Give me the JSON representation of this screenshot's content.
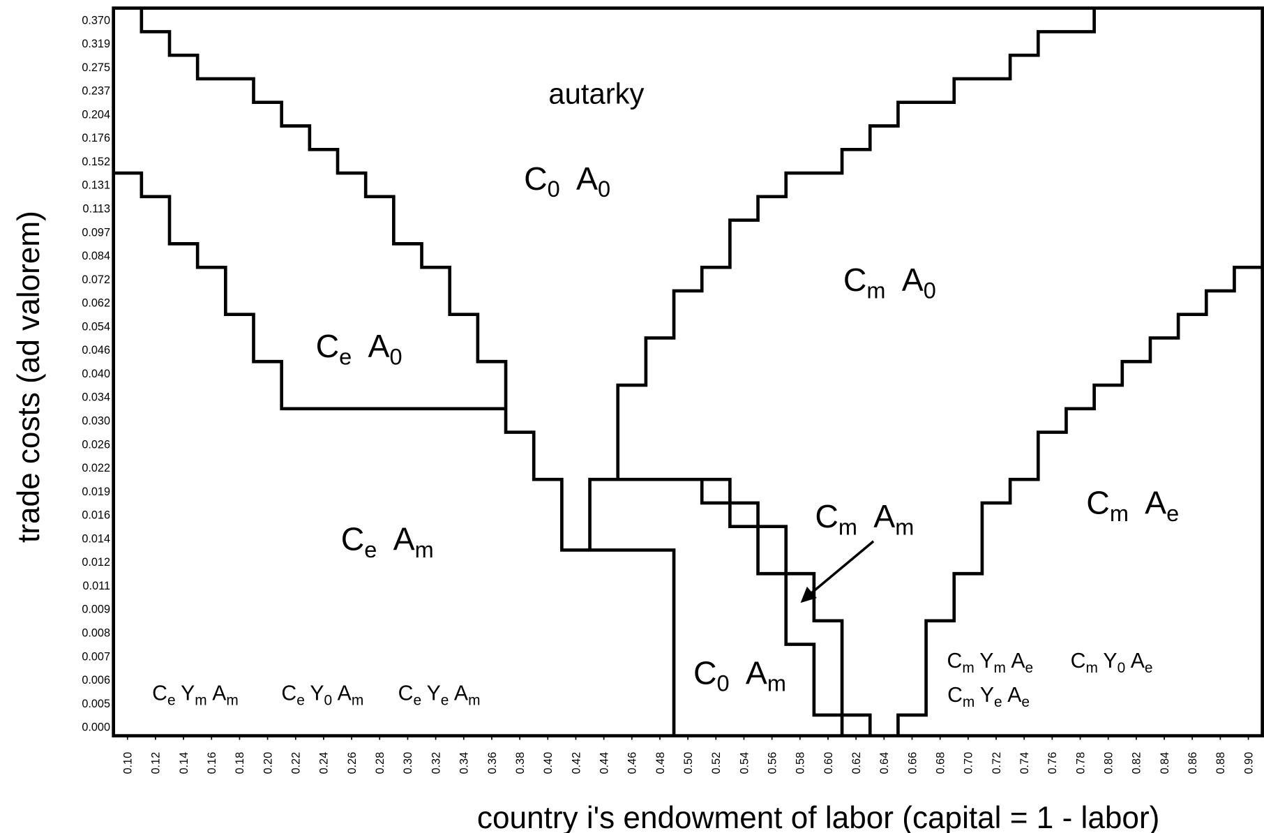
{
  "chart_data": {
    "type": "line",
    "x_label": "country i's endowment of labor  (capital  = 1 - labor)",
    "y_label": "trade costs (ad valorem)",
    "xlim": [
      0.09,
      0.91
    ],
    "xticks": [
      {
        "value": 0.1,
        "label": "0.10"
      },
      {
        "value": 0.12,
        "label": "0.12"
      },
      {
        "value": 0.14,
        "label": "0.14"
      },
      {
        "value": 0.16,
        "label": "0.16"
      },
      {
        "value": 0.18,
        "label": "0.18"
      },
      {
        "value": 0.2,
        "label": "0.20"
      },
      {
        "value": 0.22,
        "label": "0.22"
      },
      {
        "value": 0.24,
        "label": "0.24"
      },
      {
        "value": 0.26,
        "label": "0.26"
      },
      {
        "value": 0.28,
        "label": "0.28"
      },
      {
        "value": 0.3,
        "label": "0.30"
      },
      {
        "value": 0.32,
        "label": "0.32"
      },
      {
        "value": 0.34,
        "label": "0.34"
      },
      {
        "value": 0.36,
        "label": "0.36"
      },
      {
        "value": 0.38,
        "label": "0.38"
      },
      {
        "value": 0.4,
        "label": "0.40"
      },
      {
        "value": 0.42,
        "label": "0.42"
      },
      {
        "value": 0.44,
        "label": "0.44"
      },
      {
        "value": 0.46,
        "label": "0.46"
      },
      {
        "value": 0.48,
        "label": "0.48"
      },
      {
        "value": 0.5,
        "label": "0.50"
      },
      {
        "value": 0.52,
        "label": "0.52"
      },
      {
        "value": 0.54,
        "label": "0.54"
      },
      {
        "value": 0.56,
        "label": "0.56"
      },
      {
        "value": 0.58,
        "label": "0.58"
      },
      {
        "value": 0.6,
        "label": "0.60"
      },
      {
        "value": 0.62,
        "label": "0.62"
      },
      {
        "value": 0.64,
        "label": "0.64"
      },
      {
        "value": 0.66,
        "label": "0.66"
      },
      {
        "value": 0.68,
        "label": "0.68"
      },
      {
        "value": 0.7,
        "label": "0.70"
      },
      {
        "value": 0.72,
        "label": "0.72"
      },
      {
        "value": 0.74,
        "label": "0.74"
      },
      {
        "value": 0.76,
        "label": "0.76"
      },
      {
        "value": 0.78,
        "label": "0.78"
      },
      {
        "value": 0.8,
        "label": "0.80"
      },
      {
        "value": 0.82,
        "label": "0.82"
      },
      {
        "value": 0.84,
        "label": "0.84"
      },
      {
        "value": 0.86,
        "label": "0.86"
      },
      {
        "value": 0.88,
        "label": "0.88"
      },
      {
        "value": 0.9,
        "label": "0.90"
      }
    ],
    "y_categories": [
      "0.000",
      "0.005",
      "0.006",
      "0.007",
      "0.008",
      "0.009",
      "0.011",
      "0.012",
      "0.014",
      "0.016",
      "0.019",
      "0.022",
      "0.026",
      "0.030",
      "0.034",
      "0.040",
      "0.046",
      "0.054",
      "0.062",
      "0.072",
      "0.084",
      "0.097",
      "0.113",
      "0.131",
      "0.152",
      "0.176",
      "0.204",
      "0.237",
      "0.275",
      "0.319",
      "0.370"
    ],
    "ylim": [
      -0.38,
      30.5
    ],
    "color": "#000000",
    "series": [
      {
        "x": [
          0.11,
          0.11,
          0.13,
          0.13,
          0.15,
          0.15,
          0.19,
          0.19,
          0.21,
          0.21,
          0.23,
          0.23,
          0.25,
          0.25,
          0.27,
          0.27,
          0.29,
          0.29,
          0.31,
          0.31,
          0.33,
          0.33,
          0.35,
          0.35,
          0.37,
          0.37,
          0.39,
          0.39,
          0.41,
          0.41,
          0.49,
          0.49
        ],
        "y": [
          30.5,
          29.5,
          29.5,
          28.5,
          28.5,
          27.5,
          27.5,
          26.5,
          26.5,
          25.5,
          25.5,
          24.5,
          24.5,
          23.5,
          23.5,
          22.5,
          22.5,
          20.5,
          20.5,
          19.5,
          19.5,
          17.5,
          17.5,
          15.5,
          15.5,
          12.5,
          12.5,
          10.5,
          10.5,
          7.5,
          7.5,
          -0.38
        ]
      },
      {
        "x": [
          0.09,
          0.11,
          0.11,
          0.13,
          0.13,
          0.15,
          0.15,
          0.17,
          0.17,
          0.19,
          0.19,
          0.21,
          0.21,
          0.37
        ],
        "y": [
          23.5,
          23.5,
          22.5,
          22.5,
          20.5,
          20.5,
          19.5,
          19.5,
          17.5,
          17.5,
          15.5,
          15.5,
          13.5,
          13.5
        ]
      },
      {
        "x": [
          0.43,
          0.43,
          0.45,
          0.45,
          0.47,
          0.47,
          0.49,
          0.49,
          0.51,
          0.51,
          0.53,
          0.53,
          0.55,
          0.55,
          0.57,
          0.57,
          0.61,
          0.61,
          0.63,
          0.63,
          0.65,
          0.65,
          0.69,
          0.69,
          0.73,
          0.73,
          0.75,
          0.75,
          0.79,
          0.79
        ],
        "y": [
          7.5,
          10.5,
          10.5,
          14.5,
          14.5,
          16.5,
          16.5,
          18.5,
          18.5,
          19.5,
          19.5,
          21.5,
          21.5,
          22.5,
          22.5,
          23.5,
          23.5,
          24.5,
          24.5,
          25.5,
          25.5,
          26.5,
          26.5,
          27.5,
          27.5,
          28.5,
          28.5,
          29.5,
          29.5,
          30.5
        ]
      },
      {
        "x": [
          0.45,
          0.53,
          0.53,
          0.55,
          0.55,
          0.57,
          0.57,
          0.59,
          0.59,
          0.61,
          0.61
        ],
        "y": [
          10.5,
          10.5,
          9.5,
          9.5,
          8.5,
          8.5,
          6.5,
          6.5,
          4.5,
          4.5,
          -0.38
        ]
      },
      {
        "x": [
          0.51,
          0.51,
          0.53,
          0.53,
          0.55,
          0.55,
          0.57,
          0.57,
          0.59,
          0.59,
          0.63,
          0.63
        ],
        "y": [
          10.5,
          9.5,
          9.5,
          8.5,
          8.5,
          6.5,
          6.5,
          3.5,
          3.5,
          0.5,
          0.5,
          -0.38
        ]
      },
      {
        "x": [
          0.65,
          0.65,
          0.67,
          0.67,
          0.69,
          0.69,
          0.71,
          0.71,
          0.73,
          0.73,
          0.75,
          0.75,
          0.77,
          0.77,
          0.79,
          0.79,
          0.81,
          0.81,
          0.83,
          0.83,
          0.85,
          0.85,
          0.87,
          0.87,
          0.89,
          0.89,
          0.91
        ],
        "y": [
          -0.38,
          0.5,
          0.5,
          4.5,
          4.5,
          6.5,
          6.5,
          9.5,
          9.5,
          10.5,
          10.5,
          12.5,
          12.5,
          13.5,
          13.5,
          14.5,
          14.5,
          15.5,
          15.5,
          16.5,
          16.5,
          17.5,
          17.5,
          18.5,
          18.5,
          19.5,
          19.5
        ]
      }
    ],
    "regions": [
      [
        "autarky"
      ],
      [
        "C",
        "0",
        "A",
        "0"
      ],
      [
        "C",
        "m",
        "A",
        "0"
      ],
      [
        "C",
        "e",
        "A",
        "0"
      ],
      [
        "C",
        "e",
        "A",
        "m"
      ],
      [
        "C",
        "m",
        "A",
        "m"
      ],
      [
        "C",
        "m",
        "A",
        "e"
      ],
      [
        "C",
        "0",
        "A",
        "m"
      ],
      [
        "C",
        "e",
        "Y",
        "m",
        "A",
        "m"
      ],
      [
        "C",
        "e",
        "Y",
        "0",
        "A",
        "m"
      ],
      [
        "C",
        "e",
        "Y",
        "e",
        "A",
        "m"
      ],
      [
        "C",
        "m",
        "Y",
        "m",
        "A",
        "e"
      ],
      [
        "C",
        "m",
        "Y",
        "0",
        "A",
        "e"
      ],
      [
        "C",
        "m",
        "Y",
        "e",
        "A",
        "e"
      ]
    ]
  }
}
